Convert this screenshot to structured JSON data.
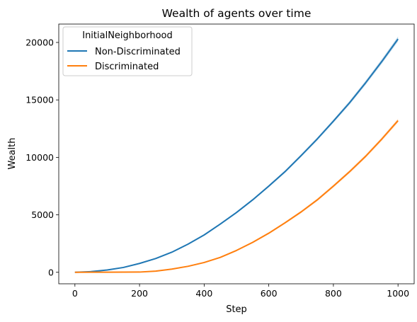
{
  "chart_data": {
    "type": "line",
    "title": "Wealth of agents over time",
    "xlabel": "Step",
    "ylabel": "Wealth",
    "xlim": [
      -50,
      1050
    ],
    "ylim": [
      -1000,
      21600
    ],
    "xticks": [
      0,
      200,
      400,
      600,
      800,
      1000
    ],
    "yticks": [
      0,
      5000,
      10000,
      15000,
      20000
    ],
    "grid": false,
    "legend": {
      "title": "InitialNeighborhood",
      "placement": "top-left"
    },
    "x": [
      0,
      50,
      100,
      150,
      200,
      250,
      300,
      350,
      400,
      450,
      500,
      550,
      600,
      650,
      700,
      750,
      800,
      850,
      900,
      950,
      1000
    ],
    "series": [
      {
        "name": "Non-Discriminated",
        "color": "#1f77b4",
        "values": [
          0,
          60,
          200,
          420,
          770,
          1200,
          1750,
          2450,
          3250,
          4200,
          5200,
          6300,
          7500,
          8750,
          10150,
          11600,
          13150,
          14750,
          16500,
          18350,
          20300
        ],
        "band_halfwidth": [
          0,
          5,
          10,
          15,
          20,
          30,
          40,
          50,
          60,
          70,
          80,
          90,
          100,
          110,
          120,
          130,
          140,
          160,
          180,
          200,
          220
        ]
      },
      {
        "name": "Discriminated",
        "color": "#ff7f0e",
        "values": [
          0,
          5,
          10,
          15,
          20,
          100,
          280,
          520,
          850,
          1300,
          1900,
          2600,
          3400,
          4300,
          5250,
          6300,
          7500,
          8750,
          10100,
          11600,
          13200
        ],
        "band_halfwidth": [
          0,
          2,
          3,
          4,
          5,
          10,
          20,
          30,
          40,
          50,
          60,
          70,
          80,
          90,
          100,
          110,
          120,
          130,
          140,
          150,
          160
        ]
      }
    ]
  }
}
